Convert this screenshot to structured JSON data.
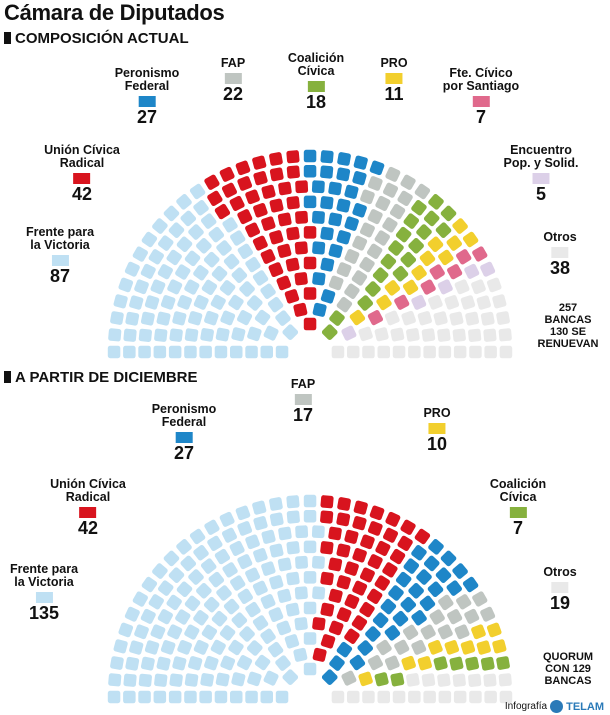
{
  "title": "Cámara de Diputados",
  "credit": {
    "prefix": "Infografía",
    "brand": "TELAM"
  },
  "chart_data": [
    {
      "type": "parliament",
      "section_title": "COMPOSICIÓN ACTUAL",
      "total_note": [
        "257",
        "BANCAS",
        "130 SE",
        "RENUEVAN"
      ],
      "series": [
        {
          "name": "Frente para la Victoria",
          "label_lines": [
            "Frente para",
            "la Victoria"
          ],
          "value": 87,
          "color": "#bfe0f3"
        },
        {
          "name": "Unión Cívica Radical",
          "label_lines": [
            "Unión Cívica",
            "Radical"
          ],
          "value": 42,
          "color": "#d8141e"
        },
        {
          "name": "Peronismo Federal",
          "label_lines": [
            "Peronismo",
            "Federal"
          ],
          "value": 27,
          "color": "#1e86c8"
        },
        {
          "name": "FAP",
          "label_lines": [
            "FAP"
          ],
          "value": 22,
          "color": "#bfc5c1"
        },
        {
          "name": "Coalición Cívica",
          "label_lines": [
            "Coalición",
            "Cívica"
          ],
          "value": 18,
          "color": "#86b13e"
        },
        {
          "name": "PRO",
          "label_lines": [
            "PRO"
          ],
          "value": 11,
          "color": "#f2cf2d"
        },
        {
          "name": "Fte. Cívico por Santiago",
          "label_lines": [
            "Fte. Cívico",
            "por Santiago"
          ],
          "value": 7,
          "color": "#e0698c"
        },
        {
          "name": "Encuentro Pop. y Solid.",
          "label_lines": [
            "Encuentro",
            "Pop. y Solid."
          ],
          "value": 5,
          "color": "#dcd0e8"
        },
        {
          "name": "Otros",
          "label_lines": [
            "Otros"
          ],
          "value": 38,
          "color": "#e9e9e9"
        }
      ]
    },
    {
      "type": "parliament",
      "section_title": "A PARTIR DE DICIEMBRE",
      "total_note": [
        "QUORUM",
        "CON 129",
        "BANCAS"
      ],
      "series": [
        {
          "name": "Frente para la Victoria",
          "label_lines": [
            "Frente para",
            "la Victoria"
          ],
          "value": 135,
          "color": "#bfe0f3"
        },
        {
          "name": "Unión Cívica Radical",
          "label_lines": [
            "Unión Cívica",
            "Radical"
          ],
          "value": 42,
          "color": "#d8141e"
        },
        {
          "name": "Peronismo Federal",
          "label_lines": [
            "Peronismo",
            "Federal"
          ],
          "value": 27,
          "color": "#1e86c8"
        },
        {
          "name": "FAP",
          "label_lines": [
            "FAP"
          ],
          "value": 17,
          "color": "#bfc5c1"
        },
        {
          "name": "PRO",
          "label_lines": [
            "PRO"
          ],
          "value": 10,
          "color": "#f2cf2d"
        },
        {
          "name": "Coalición Cívica",
          "label_lines": [
            "Coalición",
            "Cívica"
          ],
          "value": 7,
          "color": "#86b13e"
        },
        {
          "name": "Otros",
          "label_lines": [
            "Otros"
          ],
          "value": 19,
          "color": "#e9e9e9"
        }
      ]
    }
  ]
}
